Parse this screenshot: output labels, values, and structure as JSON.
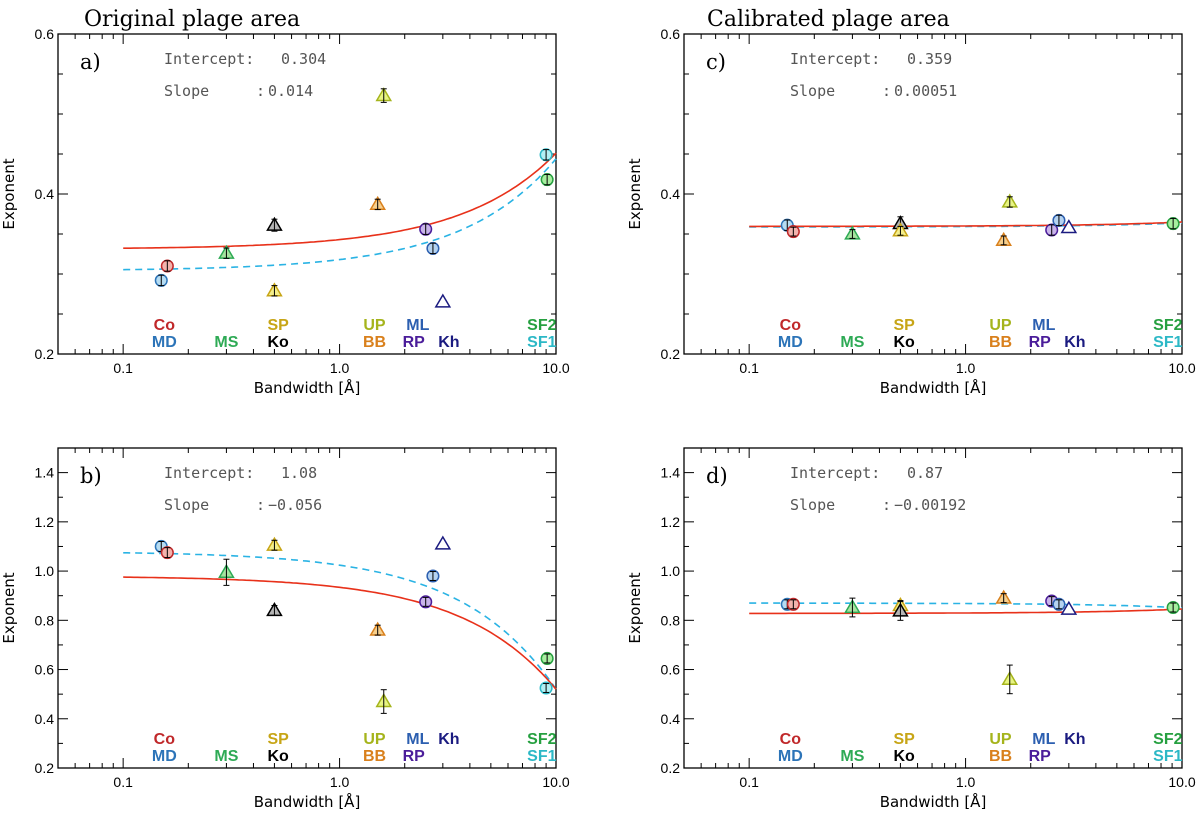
{
  "figure": {
    "left_title": "Original plage area",
    "right_title": "Calibrated plage area"
  },
  "instrument_colors": {
    "Co": "#c0282a",
    "MD": "#2c74b8",
    "MS": "#2eaa55",
    "SP": "#c7a516",
    "Ko": "#000000",
    "UP": "#a5b41c",
    "BB": "#d9801c",
    "ML": "#2c5fb0",
    "RP": "#4b1d9a",
    "Kh": "#1b1b80",
    "SF2": "#26a040",
    "SF1": "#2cb8c6"
  },
  "chart_data": [
    {
      "type": "scatter",
      "panel": "a)",
      "xscale": "log",
      "xlim": [
        0.05,
        10.0
      ],
      "ylim": [
        0.2,
        0.6
      ],
      "xticks": [
        "0.1",
        "1.0",
        "10.0"
      ],
      "yticks": [
        "0.2",
        "0.4",
        "0.6"
      ],
      "xlabel": "Bandwidth [Å]",
      "ylabel": "Exponent",
      "annotation": {
        "intercept_label": "Intercept",
        "intercept_value": "0.304",
        "slope_label": "Slope",
        "slope_value": "0.014"
      },
      "fits": {
        "solid": {
          "color": "#e8311a",
          "y0": 0.331,
          "k": 0.012
        },
        "dashed": {
          "color": "#2ab3e4",
          "y0": 0.304,
          "k": 0.014
        }
      },
      "labels_row1": [
        "Co",
        "SP",
        "UP",
        "ML",
        "SF2"
      ],
      "labels_row2": [
        "MD",
        "MS",
        "Ko",
        "BB",
        "RP",
        "Kh",
        "SF1"
      ],
      "points": [
        {
          "name": "MD",
          "x": 0.15,
          "y": 0.292,
          "err": 0.004,
          "marker": "circle",
          "edge": "#2c74b8",
          "fill": "#b6dcf2"
        },
        {
          "name": "Co",
          "x": 0.16,
          "y": 0.31,
          "err": 0.004,
          "marker": "circle",
          "edge": "#c0282a",
          "fill": "#f2b3ad"
        },
        {
          "name": "MS",
          "x": 0.3,
          "y": 0.326,
          "err": 0.004,
          "marker": "triangle",
          "edge": "#2eaa55",
          "fill": "#a7e3a0"
        },
        {
          "name": "Ko",
          "x": 0.5,
          "y": 0.361,
          "err": 0.005,
          "marker": "triangle",
          "edge": "#000000",
          "fill": "#b5b5b5"
        },
        {
          "name": "SP",
          "x": 0.5,
          "y": 0.279,
          "err": 0.004,
          "marker": "triangle",
          "edge": "#c7a516",
          "fill": "#f4ee8a"
        },
        {
          "name": "BB",
          "x": 1.5,
          "y": 0.387,
          "err": 0.004,
          "marker": "triangle",
          "edge": "#d9801c",
          "fill": "#f6cf8d"
        },
        {
          "name": "UP",
          "x": 1.6,
          "y": 0.523,
          "err": 0.006,
          "marker": "triangle",
          "edge": "#a5b41c",
          "fill": "#e7f483"
        },
        {
          "name": "RP",
          "x": 2.5,
          "y": 0.356,
          "err": 0.004,
          "marker": "circle",
          "edge": "#4b1d9a",
          "fill": "#c9b4ea"
        },
        {
          "name": "ML",
          "x": 2.7,
          "y": 0.332,
          "err": 0.004,
          "marker": "circle",
          "edge": "#2c5fb0",
          "fill": "#b6d3f0"
        },
        {
          "name": "Kh",
          "x": 3.0,
          "y": 0.265,
          "err": 0.0,
          "marker": "triangle",
          "edge": "#1b1b80",
          "fill": "#ffffff"
        },
        {
          "name": "SF1",
          "x": 9.0,
          "y": 0.449,
          "err": 0.004,
          "marker": "circle",
          "edge": "#2cb8c6",
          "fill": "#b2f0f4"
        },
        {
          "name": "SF2",
          "x": 9.1,
          "y": 0.418,
          "err": 0.004,
          "marker": "circle",
          "edge": "#26a040",
          "fill": "#a8eea0"
        }
      ]
    },
    {
      "type": "scatter",
      "panel": "c)",
      "xscale": "log",
      "xlim": [
        0.05,
        10.0
      ],
      "ylim": [
        0.2,
        0.6
      ],
      "xticks": [
        "0.1",
        "1.0",
        "10.0"
      ],
      "yticks": [
        "0.2",
        "0.4",
        "0.6"
      ],
      "xlabel": "Bandwidth [Å]",
      "ylabel": "Exponent",
      "annotation": {
        "intercept_label": "Intercept",
        "intercept_value": "0.359",
        "slope_label": "Slope",
        "slope_value": "0.00051"
      },
      "fits": {
        "solid": {
          "color": "#e8311a",
          "y0": 0.3595,
          "k": 0.00055
        },
        "dashed": {
          "color": "#2ab3e4",
          "y0": 0.3588,
          "k": 0.00051
        }
      },
      "labels_row1": [
        "Co",
        "SP",
        "UP",
        "ML",
        "SF2"
      ],
      "labels_row2": [
        "MD",
        "MS",
        "Ko",
        "BB",
        "RP",
        "Kh",
        "SF1"
      ],
      "points": [
        {
          "name": "MD",
          "x": 0.15,
          "y": 0.361,
          "err": 0.004,
          "marker": "circle",
          "edge": "#2c74b8",
          "fill": "#b6dcf2"
        },
        {
          "name": "Co",
          "x": 0.16,
          "y": 0.353,
          "err": 0.003,
          "marker": "circle",
          "edge": "#c0282a",
          "fill": "#f2b3ad"
        },
        {
          "name": "MS",
          "x": 0.3,
          "y": 0.35,
          "err": 0.003,
          "marker": "triangle",
          "edge": "#2eaa55",
          "fill": "#a7e3a0"
        },
        {
          "name": "Ko",
          "x": 0.5,
          "y": 0.363,
          "err": 0.006,
          "marker": "triangle",
          "edge": "#000000",
          "fill": "#b5b5b5"
        },
        {
          "name": "SP",
          "x": 0.5,
          "y": 0.354,
          "err": 0.003,
          "marker": "triangle",
          "edge": "#c7a516",
          "fill": "#f4ee8a"
        },
        {
          "name": "BB",
          "x": 1.5,
          "y": 0.342,
          "err": 0.003,
          "marker": "triangle",
          "edge": "#d9801c",
          "fill": "#f6cf8d"
        },
        {
          "name": "UP",
          "x": 1.6,
          "y": 0.39,
          "err": 0.004,
          "marker": "triangle",
          "edge": "#a5b41c",
          "fill": "#e7f483"
        },
        {
          "name": "RP",
          "x": 2.5,
          "y": 0.355,
          "err": 0.004,
          "marker": "circle",
          "edge": "#4b1d9a",
          "fill": "#c9b4ea"
        },
        {
          "name": "ML",
          "x": 2.7,
          "y": 0.367,
          "err": 0.004,
          "marker": "circle",
          "edge": "#2c5fb0",
          "fill": "#b6d3f0"
        },
        {
          "name": "Kh",
          "x": 3.0,
          "y": 0.358,
          "err": 0.0,
          "marker": "triangle",
          "edge": "#1b1b80",
          "fill": "#ffffff"
        },
        {
          "name": "SF2",
          "x": 9.1,
          "y": 0.363,
          "err": 0.004,
          "marker": "circle",
          "edge": "#26a040",
          "fill": "#a8eea0"
        }
      ]
    },
    {
      "type": "scatter",
      "panel": "b)",
      "xscale": "log",
      "xlim": [
        0.05,
        10.0
      ],
      "ylim": [
        0.2,
        1.5
      ],
      "xticks": [
        "0.1",
        "1.0",
        "10.0"
      ],
      "yticks": [
        "0.2",
        "0.4",
        "0.6",
        "0.8",
        "1.0",
        "1.2",
        "1.4"
      ],
      "xlabel": "Bandwidth [Å]",
      "ylabel": "Exponent",
      "annotation": {
        "intercept_label": "Intercept",
        "intercept_value": "1.08",
        "slope_label": "Slope",
        "slope_value": "−0.056"
      },
      "fits": {
        "solid": {
          "color": "#e8311a",
          "y0": 0.98,
          "k": -0.046
        },
        "dashed": {
          "color": "#2ab3e4",
          "y0": 1.08,
          "k": -0.056
        }
      },
      "labels_row1": [
        "Co",
        "SP",
        "UP",
        "ML",
        "Kh",
        "SF2"
      ],
      "labels_row2": [
        "MD",
        "MS",
        "Ko",
        "BB",
        "RP",
        "SF1"
      ],
      "points": [
        {
          "name": "MD",
          "x": 0.15,
          "y": 1.1,
          "err": 0.012,
          "marker": "circle",
          "edge": "#2c74b8",
          "fill": "#b6dcf2"
        },
        {
          "name": "Co",
          "x": 0.16,
          "y": 1.075,
          "err": 0.012,
          "marker": "circle",
          "edge": "#c0282a",
          "fill": "#f2b3ad"
        },
        {
          "name": "MS",
          "x": 0.3,
          "y": 0.995,
          "err": 0.045,
          "marker": "triangle",
          "edge": "#2eaa55",
          "fill": "#a7e3a0"
        },
        {
          "name": "Ko",
          "x": 0.5,
          "y": 0.84,
          "err": 0.012,
          "marker": "triangle",
          "edge": "#000000",
          "fill": "#b5b5b5"
        },
        {
          "name": "SP",
          "x": 0.5,
          "y": 1.105,
          "err": 0.012,
          "marker": "triangle",
          "edge": "#c7a516",
          "fill": "#f4ee8a"
        },
        {
          "name": "BB",
          "x": 1.5,
          "y": 0.76,
          "err": 0.012,
          "marker": "triangle",
          "edge": "#d9801c",
          "fill": "#f6cf8d"
        },
        {
          "name": "UP",
          "x": 1.6,
          "y": 0.47,
          "err": 0.04,
          "marker": "triangle",
          "edge": "#a5b41c",
          "fill": "#e7f483"
        },
        {
          "name": "RP",
          "x": 2.5,
          "y": 0.875,
          "err": 0.01,
          "marker": "circle",
          "edge": "#4b1d9a",
          "fill": "#c9b4ea"
        },
        {
          "name": "ML",
          "x": 2.7,
          "y": 0.98,
          "err": 0.01,
          "marker": "circle",
          "edge": "#2c5fb0",
          "fill": "#b6d3f0"
        },
        {
          "name": "Kh",
          "x": 3.0,
          "y": 1.11,
          "err": 0.0,
          "marker": "triangle",
          "edge": "#1b1b80",
          "fill": "#ffffff"
        },
        {
          "name": "SF2",
          "x": 9.1,
          "y": 0.645,
          "err": 0.01,
          "marker": "circle",
          "edge": "#26a040",
          "fill": "#a8eea0"
        },
        {
          "name": "SF1",
          "x": 9.0,
          "y": 0.525,
          "err": 0.01,
          "marker": "circle",
          "edge": "#2cb8c6",
          "fill": "#b2f0f4"
        }
      ]
    },
    {
      "type": "scatter",
      "panel": "d)",
      "xscale": "log",
      "xlim": [
        0.05,
        10.0
      ],
      "ylim": [
        0.2,
        1.5
      ],
      "xticks": [
        "0.1",
        "1.0",
        "10.0"
      ],
      "yticks": [
        "0.2",
        "0.4",
        "0.6",
        "0.8",
        "1.0",
        "1.2",
        "1.4"
      ],
      "xlabel": "Bandwidth [Å]",
      "ylabel": "Exponent",
      "annotation": {
        "intercept_label": "Intercept",
        "intercept_value": "0.87",
        "slope_label": "Slope",
        "slope_value": "−0.00192"
      },
      "fits": {
        "solid": {
          "color": "#e8311a",
          "y0": 0.828,
          "k": 0.0018
        },
        "dashed": {
          "color": "#2ab3e4",
          "y0": 0.87,
          "k": -0.00192
        }
      },
      "labels_row1": [
        "Co",
        "SP",
        "UP",
        "ML",
        "Kh",
        "SF2"
      ],
      "labels_row2": [
        "MD",
        "MS",
        "Ko",
        "BB",
        "RP",
        "SF1"
      ],
      "points": [
        {
          "name": "MD",
          "x": 0.15,
          "y": 0.865,
          "err": 0.01,
          "marker": "circle",
          "edge": "#2c74b8",
          "fill": "#b6dcf2"
        },
        {
          "name": "Co",
          "x": 0.16,
          "y": 0.865,
          "err": 0.01,
          "marker": "circle",
          "edge": "#c0282a",
          "fill": "#f2b3ad"
        },
        {
          "name": "MS",
          "x": 0.3,
          "y": 0.852,
          "err": 0.03,
          "marker": "triangle",
          "edge": "#2eaa55",
          "fill": "#a7e3a0"
        },
        {
          "name": "SP",
          "x": 0.5,
          "y": 0.86,
          "err": 0.012,
          "marker": "triangle",
          "edge": "#c7a516",
          "fill": "#f4ee8a"
        },
        {
          "name": "Ko",
          "x": 0.5,
          "y": 0.838,
          "err": 0.03,
          "marker": "triangle",
          "edge": "#000000",
          "fill": "#b5b5b5"
        },
        {
          "name": "BB",
          "x": 1.5,
          "y": 0.89,
          "err": 0.01,
          "marker": "triangle",
          "edge": "#d9801c",
          "fill": "#f6cf8d"
        },
        {
          "name": "UP",
          "x": 1.6,
          "y": 0.56,
          "err": 0.05,
          "marker": "triangle",
          "edge": "#a5b41c",
          "fill": "#e7f483"
        },
        {
          "name": "RP",
          "x": 2.5,
          "y": 0.878,
          "err": 0.01,
          "marker": "circle",
          "edge": "#4b1d9a",
          "fill": "#c9b4ea"
        },
        {
          "name": "ML",
          "x": 2.7,
          "y": 0.865,
          "err": 0.01,
          "marker": "circle",
          "edge": "#2c5fb0",
          "fill": "#b6d3f0"
        },
        {
          "name": "Kh",
          "x": 3.0,
          "y": 0.845,
          "err": 0.0,
          "marker": "triangle",
          "edge": "#1b1b80",
          "fill": "#ffffff"
        },
        {
          "name": "SF2",
          "x": 9.1,
          "y": 0.852,
          "err": 0.01,
          "marker": "circle",
          "edge": "#26a040",
          "fill": "#a8eea0"
        }
      ]
    }
  ]
}
